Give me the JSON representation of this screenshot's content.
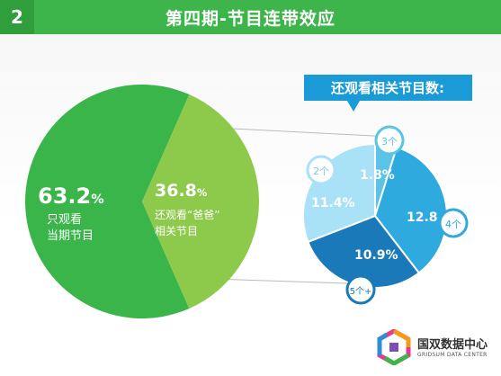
{
  "header": {
    "number": "2",
    "title": "第四期-节目连带效应"
  },
  "chart_data": [
    {
      "type": "pie",
      "slices": [
        {
          "value": 63.2,
          "display": "63.2%",
          "label_lines": [
            "只观看",
            "当期节目"
          ],
          "color": "#3ab54a"
        },
        {
          "value": 36.8,
          "display": "36.8%",
          "label_lines": [
            "还观看“爸爸”",
            "相关节目"
          ],
          "color": "#8dc94b"
        }
      ]
    },
    {
      "type": "pie",
      "title": "还观看相关节目数:",
      "slices": [
        {
          "category": "3个",
          "display": "1.8%",
          "value": 1.8,
          "color": "#5bc4e6"
        },
        {
          "category": "4个",
          "display": "12.8",
          "value": 12.8,
          "color": "#2faadf"
        },
        {
          "category": "5个+",
          "display": "10.9%",
          "value": 10.9,
          "color": "#1a79b9"
        },
        {
          "category": "2个",
          "display": "11.4%",
          "value": 11.4,
          "color": "#a9e1f6"
        }
      ]
    }
  ],
  "logo": {
    "name": "国双数据中心",
    "subtitle": "GRIDSUM DATA CENTER"
  }
}
